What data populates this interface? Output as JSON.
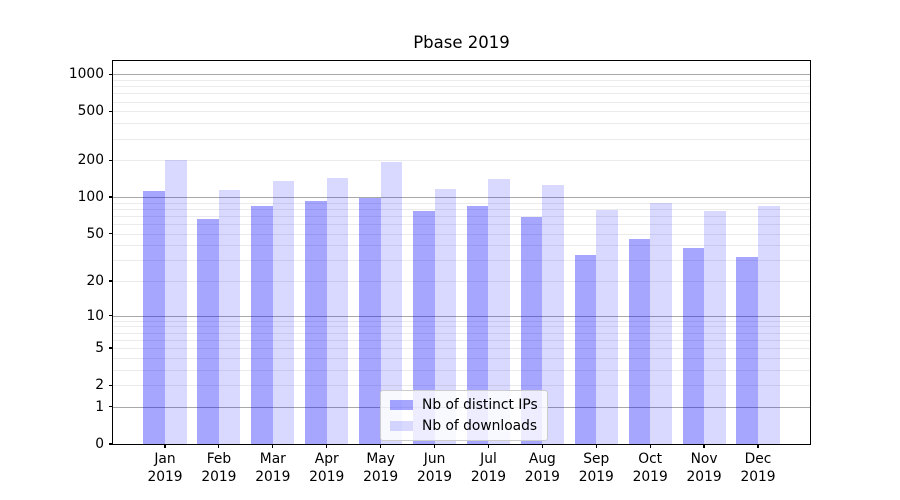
{
  "chart_data": {
    "type": "bar",
    "title": "Pbase 2019",
    "months": [
      "Jan",
      "Feb",
      "Mar",
      "Apr",
      "May",
      "Jun",
      "Jul",
      "Aug",
      "Sep",
      "Oct",
      "Nov",
      "Dec"
    ],
    "year": "2019",
    "series": [
      {
        "name": "Nb of distinct IPs",
        "color": "#0000FF",
        "alpha": 0.35,
        "values": [
          112,
          66,
          85,
          92,
          98,
          76,
          85,
          68,
          33,
          45,
          38,
          32
        ]
      },
      {
        "name": "Nb of downloads",
        "color": "#0000FF",
        "alpha": 0.15,
        "values": [
          200,
          114,
          134,
          144,
          192,
          116,
          140,
          125,
          78,
          89,
          76,
          85
        ]
      }
    ],
    "yscale": "log1p",
    "yticks": [
      0,
      1,
      2,
      5,
      10,
      20,
      50,
      100,
      200,
      500,
      1000
    ],
    "ylim": [
      0,
      1280
    ],
    "grid": true,
    "legend_position": "lower center",
    "major_grid_color": "#a8a8a8",
    "minor_grid_color": "#ebebeb"
  }
}
